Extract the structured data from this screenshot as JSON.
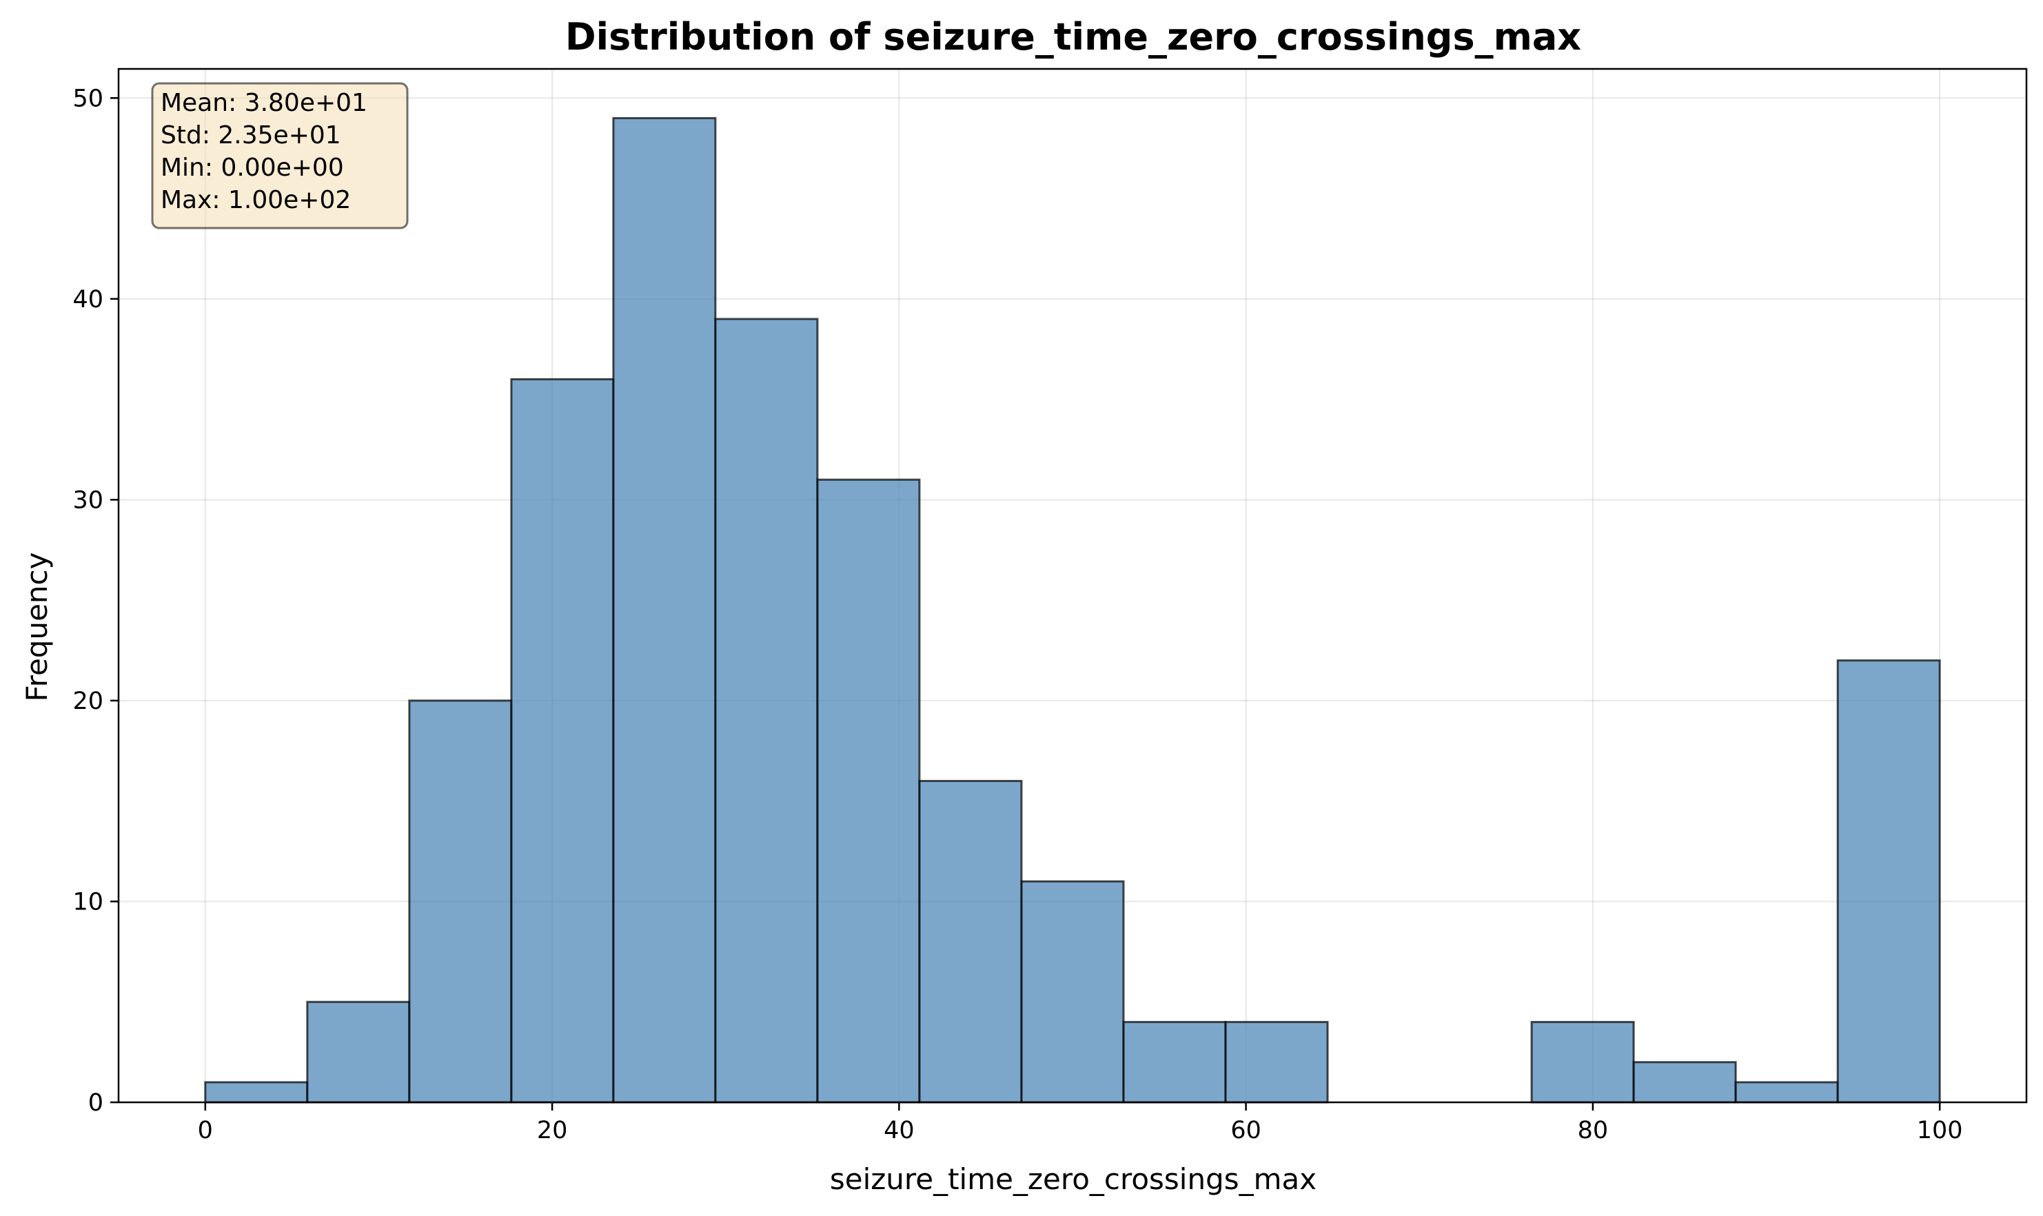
{
  "chart_data": {
    "type": "bar",
    "title": "Distribution of seizure_time_zero_crossings_max",
    "xlabel": "seizure_time_zero_crossings_max",
    "ylabel": "Frequency",
    "bin_edges": [
      0,
      5.882,
      11.765,
      17.647,
      23.529,
      29.412,
      35.294,
      41.176,
      47.059,
      52.941,
      58.824,
      64.706,
      70.588,
      76.471,
      82.353,
      88.235,
      94.118,
      100
    ],
    "values": [
      1,
      5,
      20,
      36,
      49,
      39,
      31,
      16,
      11,
      4,
      4,
      0,
      0,
      4,
      2,
      1,
      22
    ],
    "xlim": [
      -5,
      105
    ],
    "ylim": [
      0,
      51.45
    ],
    "xticks": [
      0,
      20,
      40,
      60,
      80,
      100
    ],
    "yticks": [
      0,
      10,
      20,
      30,
      40,
      50
    ],
    "grid": true,
    "bar_color": "#4682b4",
    "edge_color": "#000000",
    "stats_box": {
      "placement": "top-left",
      "lines": [
        "Mean: 3.80e+01",
        "Std: 2.35e+01",
        "Min: 0.00e+00",
        "Max: 1.00e+02"
      ],
      "background": "#f5deb3"
    }
  }
}
